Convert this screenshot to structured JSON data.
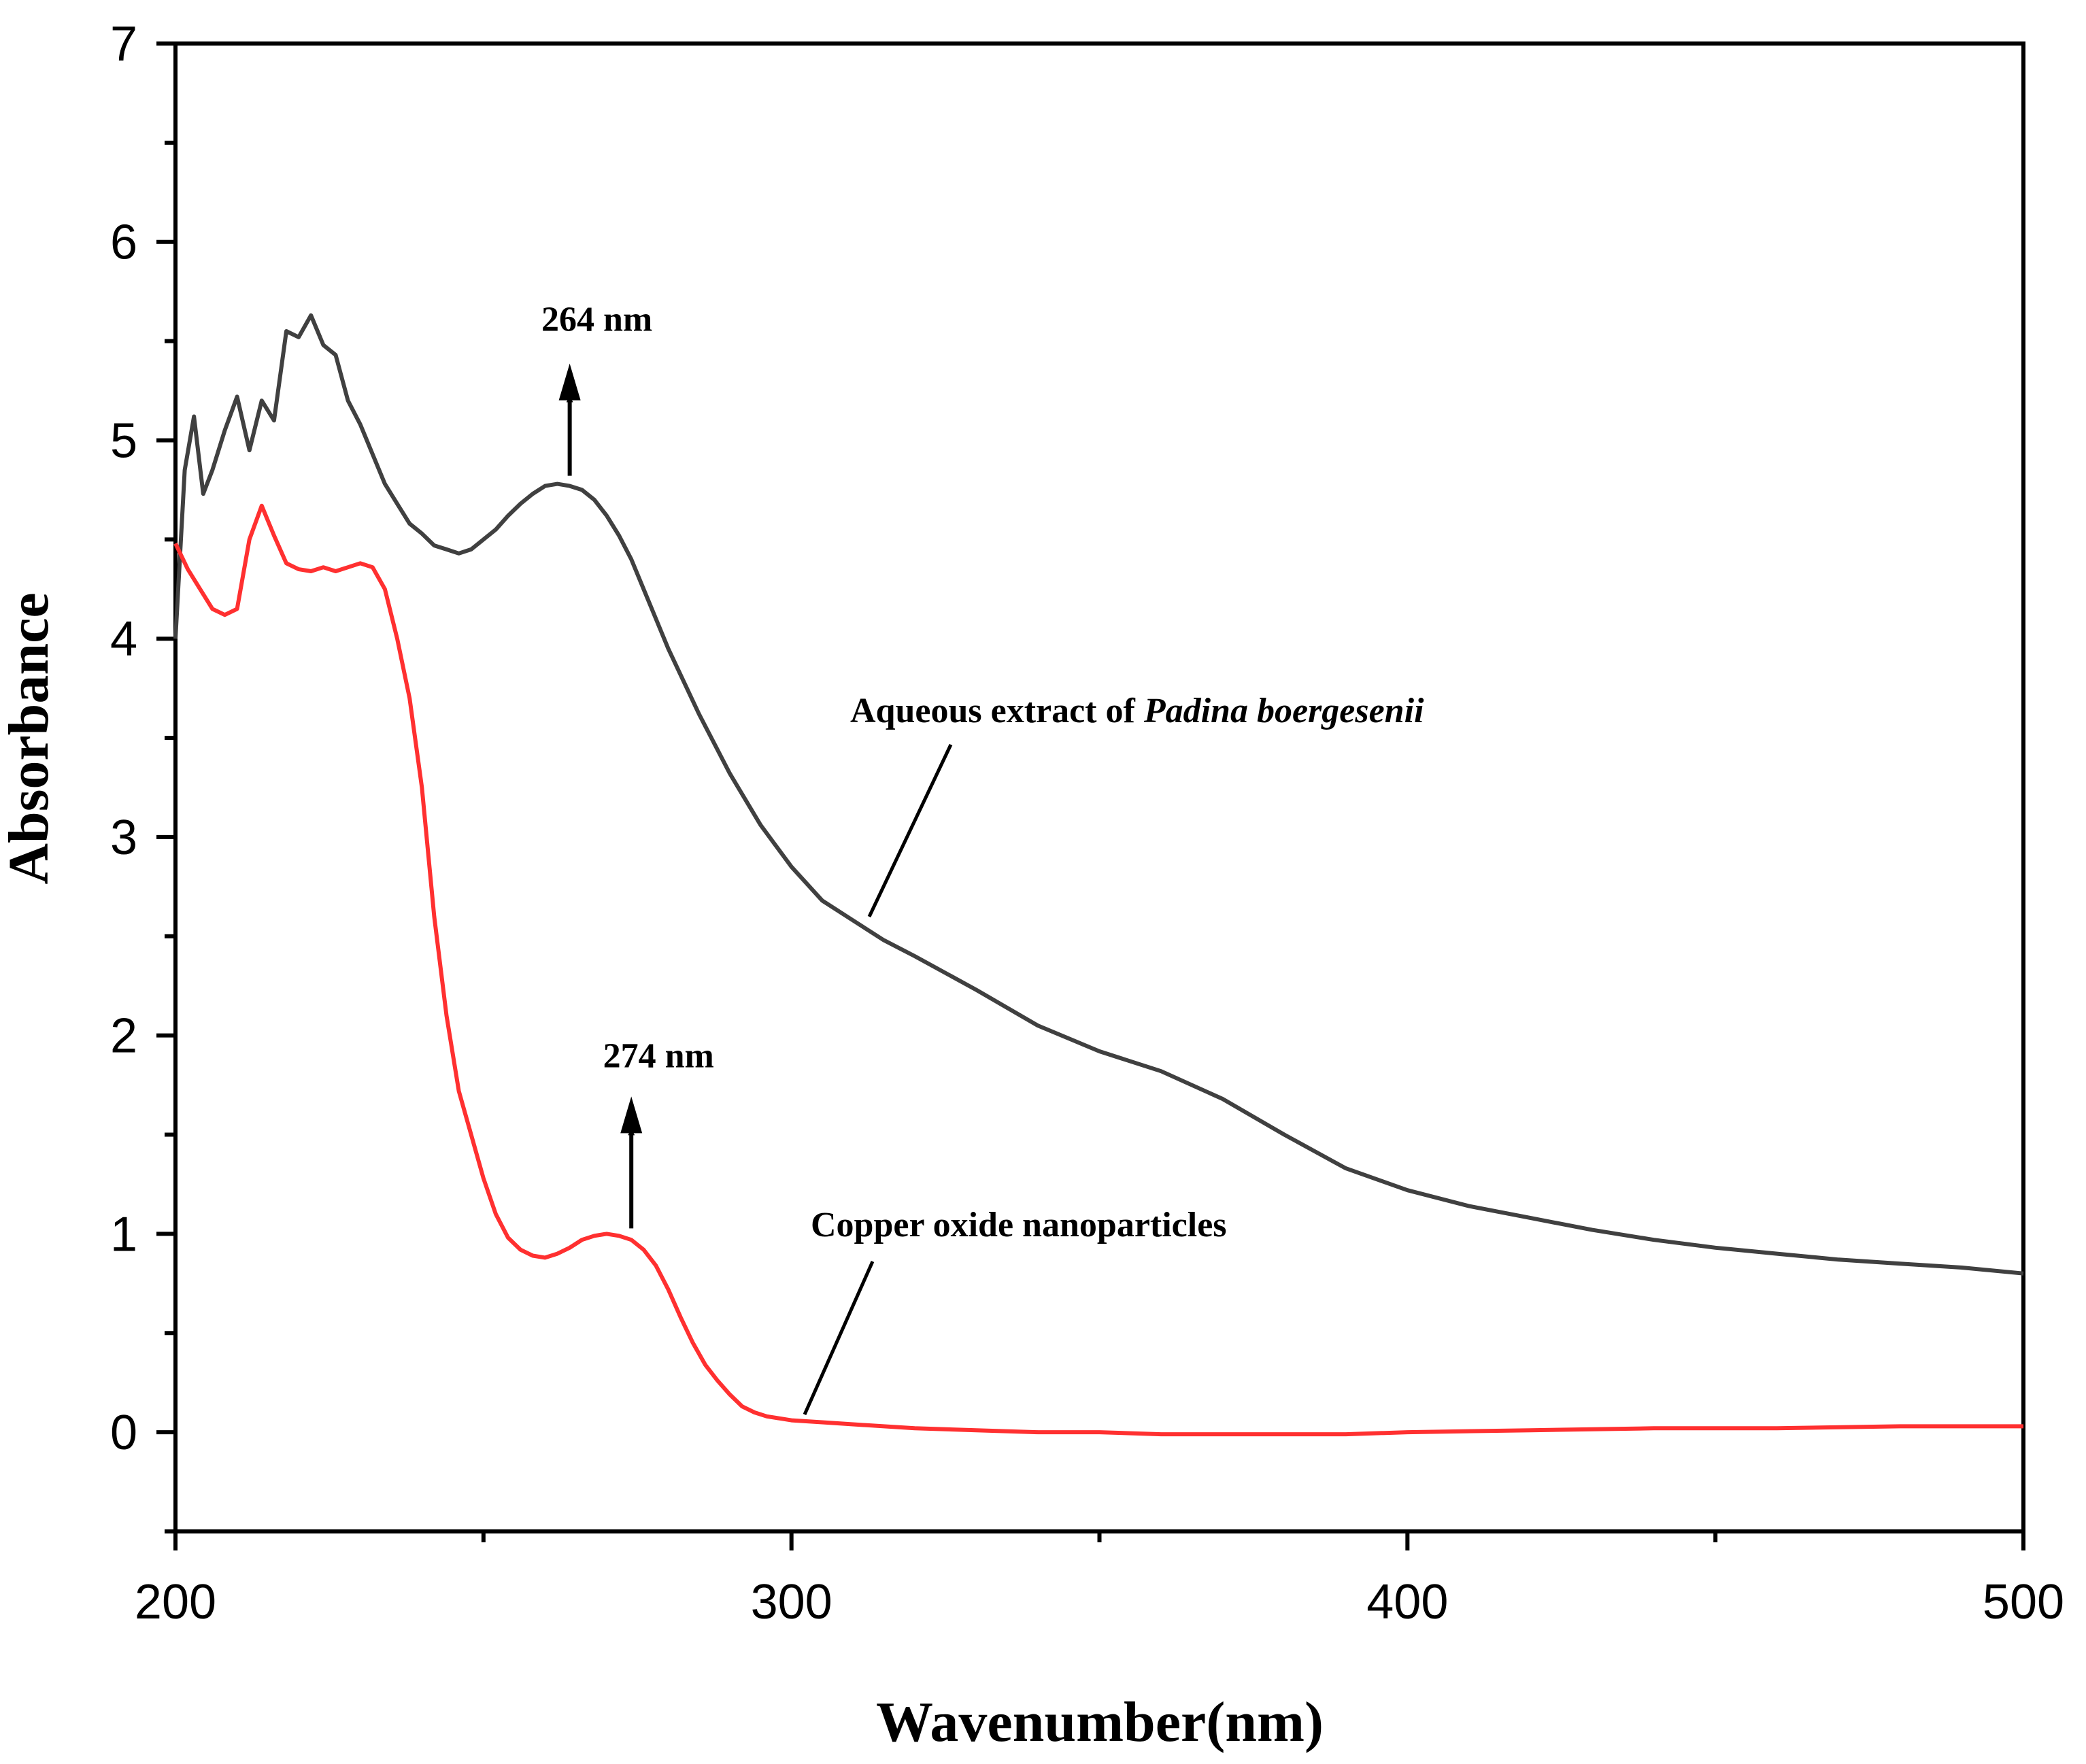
{
  "chart_data": {
    "type": "line",
    "title": "",
    "xlabel": "Wavenumber(nm)",
    "ylabel": "Absorbance",
    "xlim": [
      200,
      500
    ],
    "ylim": [
      -0.5,
      7
    ],
    "x_ticks": [
      200,
      300,
      400,
      500
    ],
    "y_ticks": [
      0,
      1,
      2,
      3,
      4,
      5,
      6,
      7
    ],
    "grid": false,
    "series": [
      {
        "name": "Aqueous extract of Padina boergesenii",
        "color": "#404040",
        "x": [
          200,
          201.5,
          203,
          204.5,
          206,
          208,
          210,
          212,
          214,
          216,
          218,
          220,
          222,
          224,
          226,
          228,
          230,
          232,
          234,
          236,
          238,
          240,
          242,
          244,
          246,
          248,
          250,
          252,
          254,
          256,
          258,
          260,
          262,
          264,
          266,
          268,
          270,
          272,
          274,
          276,
          278,
          280,
          285,
          290,
          295,
          300,
          305,
          310,
          315,
          320,
          330,
          340,
          350,
          360,
          370,
          380,
          390,
          400,
          410,
          420,
          430,
          440,
          450,
          460,
          470,
          480,
          490,
          500
        ],
        "y": [
          4.0,
          4.85,
          5.12,
          4.73,
          4.85,
          5.05,
          5.22,
          4.95,
          5.2,
          5.1,
          5.55,
          5.52,
          5.63,
          5.48,
          5.43,
          5.2,
          5.08,
          4.93,
          4.78,
          4.68,
          4.58,
          4.53,
          4.47,
          4.45,
          4.43,
          4.45,
          4.5,
          4.55,
          4.62,
          4.68,
          4.73,
          4.77,
          4.78,
          4.77,
          4.75,
          4.7,
          4.62,
          4.52,
          4.4,
          4.25,
          4.1,
          3.95,
          3.62,
          3.32,
          3.06,
          2.85,
          2.68,
          2.58,
          2.48,
          2.4,
          2.23,
          2.05,
          1.92,
          1.82,
          1.68,
          1.5,
          1.33,
          1.22,
          1.14,
          1.08,
          1.02,
          0.97,
          0.93,
          0.9,
          0.87,
          0.85,
          0.83,
          0.8
        ]
      },
      {
        "name": "Copper oxide nanoparticles",
        "color": "#ff3030",
        "x": [
          200,
          202,
          204,
          206,
          208,
          210,
          212,
          214,
          216,
          218,
          220,
          222,
          224,
          226,
          228,
          230,
          232,
          234,
          236,
          238,
          240,
          242,
          244,
          246,
          248,
          250,
          252,
          254,
          256,
          258,
          260,
          262,
          264,
          266,
          268,
          270,
          272,
          274,
          276,
          278,
          280,
          282,
          284,
          286,
          288,
          290,
          292,
          294,
          296,
          298,
          300,
          305,
          310,
          320,
          330,
          340,
          350,
          360,
          370,
          380,
          390,
          400,
          420,
          440,
          460,
          480,
          500
        ],
        "y": [
          4.48,
          4.35,
          4.25,
          4.15,
          4.12,
          4.15,
          4.5,
          4.67,
          4.52,
          4.38,
          4.35,
          4.34,
          4.36,
          4.34,
          4.36,
          4.38,
          4.36,
          4.25,
          4.0,
          3.7,
          3.25,
          2.6,
          2.1,
          1.72,
          1.5,
          1.28,
          1.1,
          0.98,
          0.92,
          0.89,
          0.88,
          0.9,
          0.93,
          0.97,
          0.99,
          1.0,
          0.99,
          0.97,
          0.92,
          0.84,
          0.72,
          0.58,
          0.45,
          0.34,
          0.26,
          0.19,
          0.13,
          0.1,
          0.08,
          0.07,
          0.06,
          0.05,
          0.04,
          0.02,
          0.01,
          0.0,
          0.0,
          -0.01,
          -0.01,
          -0.01,
          -0.01,
          0.0,
          0.01,
          0.02,
          0.02,
          0.03,
          0.03
        ]
      }
    ],
    "annotations": [
      {
        "text": "264 nm",
        "x": 264,
        "y": 4.78
      },
      {
        "text": "274 nm",
        "x": 274,
        "y": 1.0
      }
    ],
    "series_labels": [
      {
        "series": 0,
        "prefix": "Aqueous extract of ",
        "italic": "Padina boergesenii"
      },
      {
        "series": 1,
        "prefix": "Copper oxide nanoparticles",
        "italic": ""
      }
    ]
  }
}
